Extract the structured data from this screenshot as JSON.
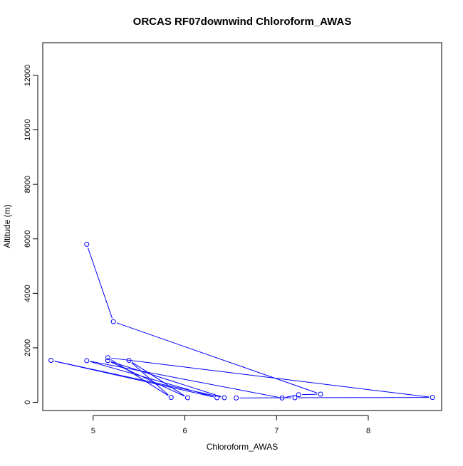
{
  "chart_data": {
    "type": "line",
    "title": "ORCAS RF07downwind Chloroform_AWAS",
    "xlabel": "Chloroform_AWAS",
    "ylabel": "Altitude (m)",
    "xlim": [
      4.45,
      8.8
    ],
    "ylim": [
      -300,
      13200
    ],
    "x_ticks": [
      5,
      6,
      7,
      8
    ],
    "y_ticks": [
      0,
      2000,
      4000,
      6000,
      8000,
      10000,
      12000
    ],
    "grid": false,
    "legend": "none",
    "series": [
      {
        "color": "#0000ff",
        "marker": "open-circle",
        "points": [
          {
            "x": 4.93,
            "y": 5800
          },
          {
            "x": 5.22,
            "y": 2960
          },
          {
            "x": 7.48,
            "y": 300
          },
          {
            "x": 7.24,
            "y": 280
          },
          {
            "x": 7.06,
            "y": 160
          },
          {
            "x": 4.93,
            "y": 1530
          },
          {
            "x": 6.35,
            "y": 170
          },
          {
            "x": 4.54,
            "y": 1540
          },
          {
            "x": 6.43,
            "y": 170
          },
          {
            "x": 5.16,
            "y": 1530
          },
          {
            "x": 6.03,
            "y": 170
          },
          {
            "x": 5.39,
            "y": 1540
          },
          {
            "x": 5.85,
            "y": 180
          },
          {
            "x": 5.16,
            "y": 1640
          },
          {
            "x": 8.7,
            "y": 180
          },
          {
            "x": 7.2,
            "y": 170
          },
          {
            "x": 6.56,
            "y": 160
          }
        ]
      }
    ]
  }
}
